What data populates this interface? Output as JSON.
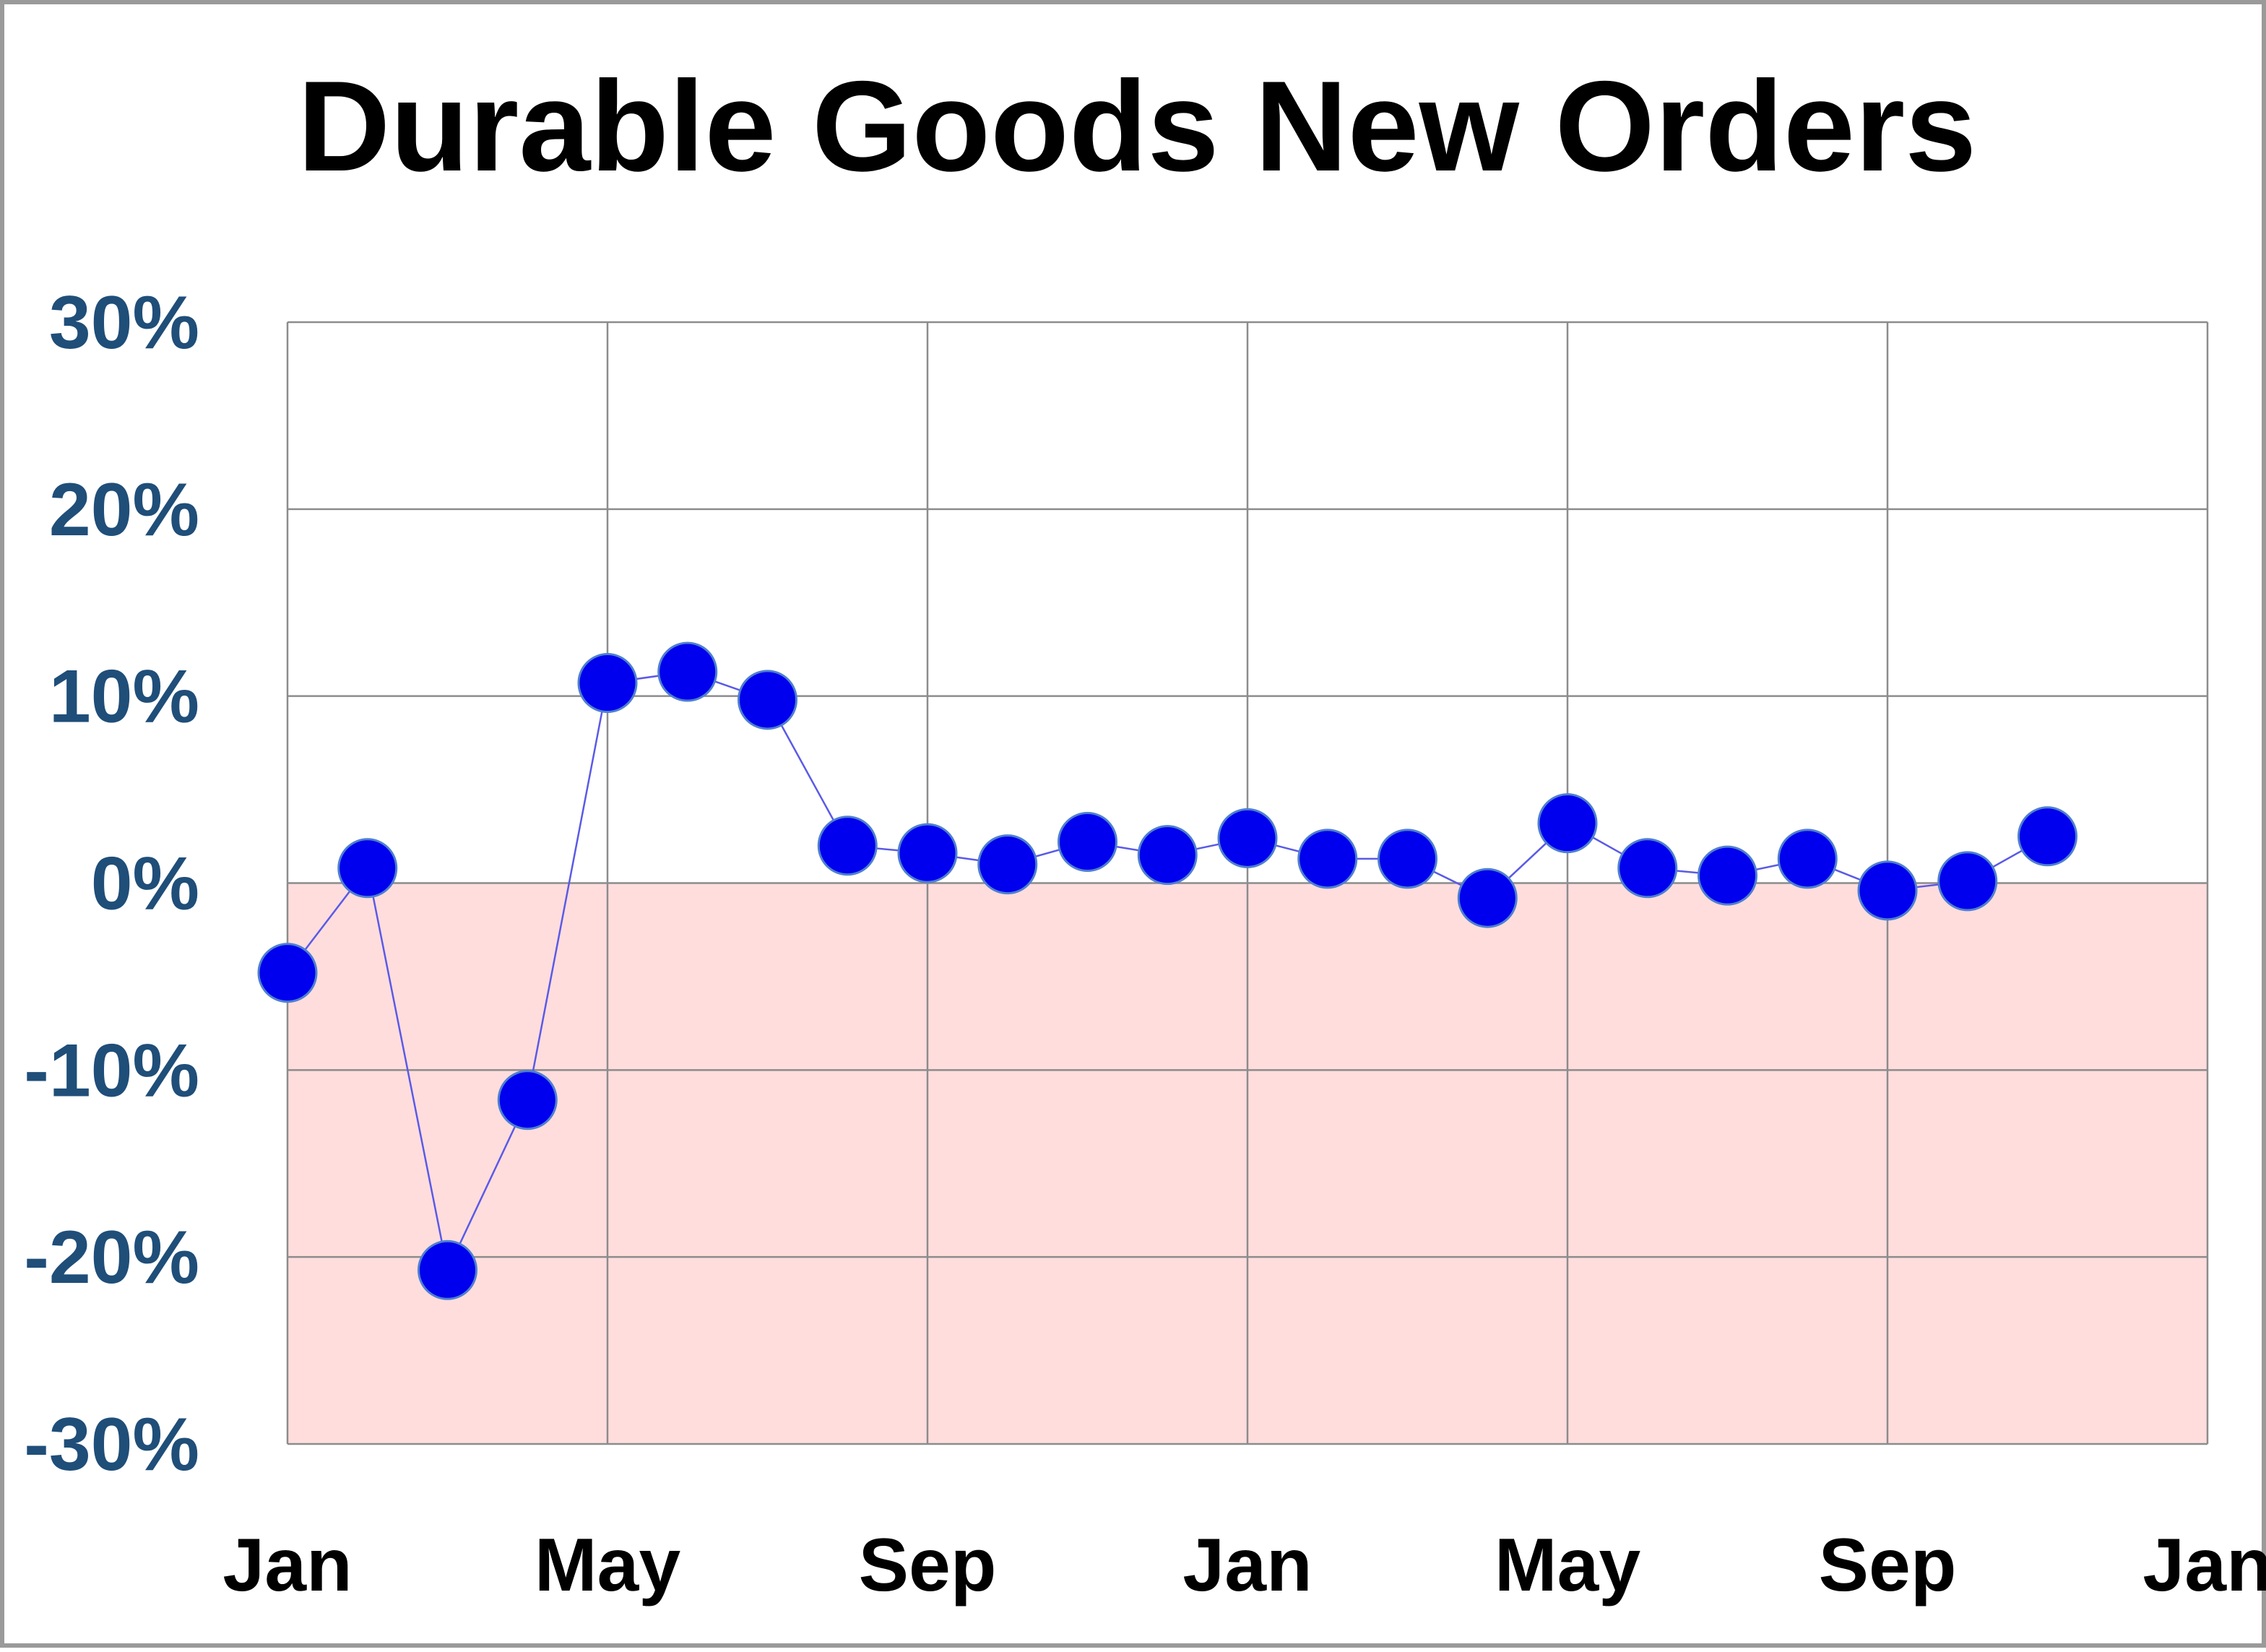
{
  "chart_data": {
    "type": "scatter",
    "title": "Durable Goods New Orders",
    "xlabel": "",
    "ylabel": "",
    "ylim": [
      -30,
      30
    ],
    "y_ticks": [
      "30%",
      "20%",
      "10%",
      "0%",
      "-10%",
      "-20%",
      "-30%"
    ],
    "y_tick_values": [
      30,
      20,
      10,
      0,
      -10,
      -20,
      -30
    ],
    "x_ticks": [
      "Jan",
      "May",
      "Sep",
      "Jan",
      "May",
      "Sep",
      "Jan"
    ],
    "x_tick_values": [
      0,
      4,
      8,
      12,
      16,
      20,
      24
    ],
    "xlim": [
      0,
      24
    ],
    "grid": true,
    "negative_region_shaded": true,
    "series": [
      {
        "x": [
          0,
          1,
          2,
          3,
          4,
          5,
          6,
          7,
          8,
          9,
          10,
          11,
          12,
          13,
          14,
          15,
          16,
          17,
          18,
          19,
          20,
          21,
          22
        ],
        "values": [
          -4.8,
          0.8,
          -20.7,
          -11.6,
          10.7,
          11.3,
          9.8,
          2.0,
          1.6,
          1.0,
          2.2,
          1.5,
          2.4,
          1.3,
          1.3,
          -0.8,
          3.2,
          0.8,
          0.4,
          1.3,
          -0.4,
          0.1,
          2.5
        ]
      }
    ],
    "colors": {
      "marker_fill": "#0000ee",
      "marker_stroke": "#4f7fd0",
      "line": "#5a5ae6",
      "negative_fill": "#ffdddd",
      "grid": "#8c8c8c",
      "ytick_text": "#1f4e79",
      "xtick_text": "#000000",
      "frame": "#9a9a9a"
    }
  }
}
